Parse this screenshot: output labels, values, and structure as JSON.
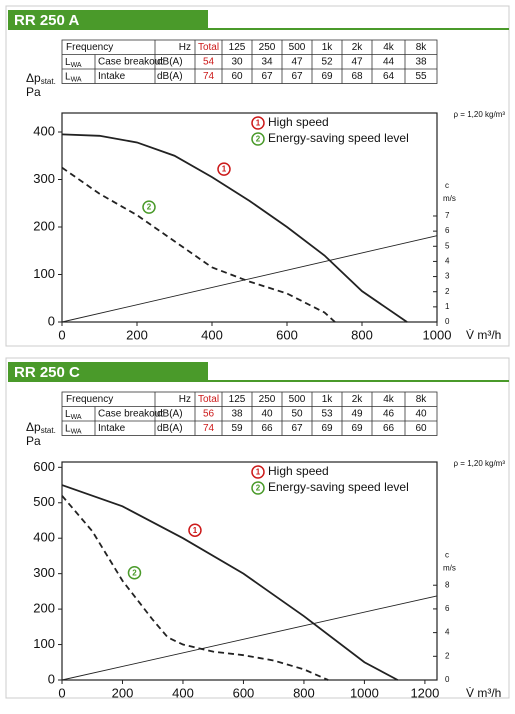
{
  "chart_data": [
    {
      "type": "line",
      "title": "RR 250 A",
      "table": {
        "header": [
          "Frequency",
          "Hz",
          "Total",
          "125",
          "250",
          "500",
          "1k",
          "2k",
          "4k",
          "8k"
        ],
        "rows": [
          {
            "symbol": "L",
            "symbol_sub": "WA",
            "label": "Case breakout",
            "unit": "dB(A)",
            "values": [
              54,
              30,
              34,
              47,
              52,
              47,
              44,
              38
            ]
          },
          {
            "symbol": "L",
            "symbol_sub": "WA",
            "label": "Intake",
            "unit": "dB(A)",
            "values": [
              74,
              60,
              67,
              67,
              69,
              68,
              64,
              55
            ]
          }
        ]
      },
      "ylabel": "Δp",
      "ylabel_sub": "stat.",
      "ylabel_unit": "Pa",
      "xlabel": "V̇ m³/h",
      "y2label": "c",
      "y2label_unit": "m/s",
      "note": "ρ = 1,20 kg/m³",
      "xlim": [
        0,
        1000
      ],
      "xticks": [
        0,
        200,
        400,
        600,
        800,
        1000
      ],
      "ylim": [
        0,
        440
      ],
      "yticks": [
        0,
        100,
        200,
        300,
        400
      ],
      "y2lim": [
        0,
        13.8
      ],
      "y2ticks": [
        0,
        1,
        2,
        3,
        4,
        5,
        6,
        7
      ],
      "series": [
        {
          "name": "High speed",
          "badge": "1",
          "badge_color": "#cc1a1a",
          "color": "#222",
          "dash": false,
          "x": [
            0,
            100,
            200,
            300,
            400,
            500,
            600,
            700,
            800,
            920
          ],
          "values": [
            395,
            392,
            378,
            350,
            305,
            255,
            200,
            140,
            65,
            0
          ]
        },
        {
          "name": "Energy-saving speed level",
          "badge": "2",
          "badge_color": "#4a9a2a",
          "color": "#222",
          "dash": true,
          "x": [
            0,
            100,
            200,
            300,
            400,
            500,
            600,
            700,
            728
          ],
          "values": [
            325,
            270,
            225,
            170,
            115,
            85,
            60,
            20,
            0
          ]
        },
        {
          "color": "#222",
          "axis": "y2",
          "x": [
            0,
            1000
          ],
          "values": [
            0,
            5.7
          ]
        }
      ]
    },
    {
      "type": "line",
      "title": "RR 250 C",
      "table": {
        "header": [
          "Frequency",
          "Hz",
          "Total",
          "125",
          "250",
          "500",
          "1k",
          "2k",
          "4k",
          "8k"
        ],
        "rows": [
          {
            "symbol": "L",
            "symbol_sub": "WA",
            "label": "Case breakout",
            "unit": "dB(A)",
            "values": [
              56,
              38,
              40,
              50,
              53,
              49,
              46,
              40
            ]
          },
          {
            "symbol": "L",
            "symbol_sub": "WA",
            "label": "Intake",
            "unit": "dB(A)",
            "values": [
              74,
              59,
              66,
              67,
              69,
              69,
              66,
              60
            ]
          }
        ]
      },
      "ylabel": "Δp",
      "ylabel_sub": "stat.",
      "ylabel_unit": "Pa",
      "xlabel": "V̇ m³/h",
      "y2label": "c",
      "y2label_unit": "m/s",
      "note": "ρ = 1,20 kg/m³",
      "xlim": [
        0,
        1240
      ],
      "xticks": [
        0,
        200,
        400,
        600,
        800,
        1000,
        1200
      ],
      "ylim": [
        0,
        615
      ],
      "yticks": [
        0,
        100,
        200,
        300,
        400,
        500,
        600
      ],
      "y2lim": [
        0,
        18.4
      ],
      "y2ticks": [
        0,
        2,
        4,
        6,
        8
      ],
      "series": [
        {
          "name": "High speed",
          "badge": "1",
          "badge_color": "#cc1a1a",
          "color": "#222",
          "dash": false,
          "x": [
            0,
            200,
            400,
            600,
            800,
            1000,
            1110
          ],
          "values": [
            550,
            490,
            400,
            300,
            180,
            50,
            0
          ]
        },
        {
          "name": "Energy-saving speed level",
          "badge": "2",
          "badge_color": "#4a9a2a",
          "color": "#222",
          "dash": true,
          "x": [
            0,
            100,
            200,
            300,
            350,
            400,
            500,
            600,
            700,
            800,
            880
          ],
          "values": [
            520,
            420,
            280,
            170,
            120,
            100,
            80,
            70,
            55,
            30,
            0
          ]
        },
        {
          "color": "#222",
          "axis": "y2",
          "x": [
            0,
            1240
          ],
          "values": [
            0,
            7.1
          ]
        }
      ]
    }
  ]
}
